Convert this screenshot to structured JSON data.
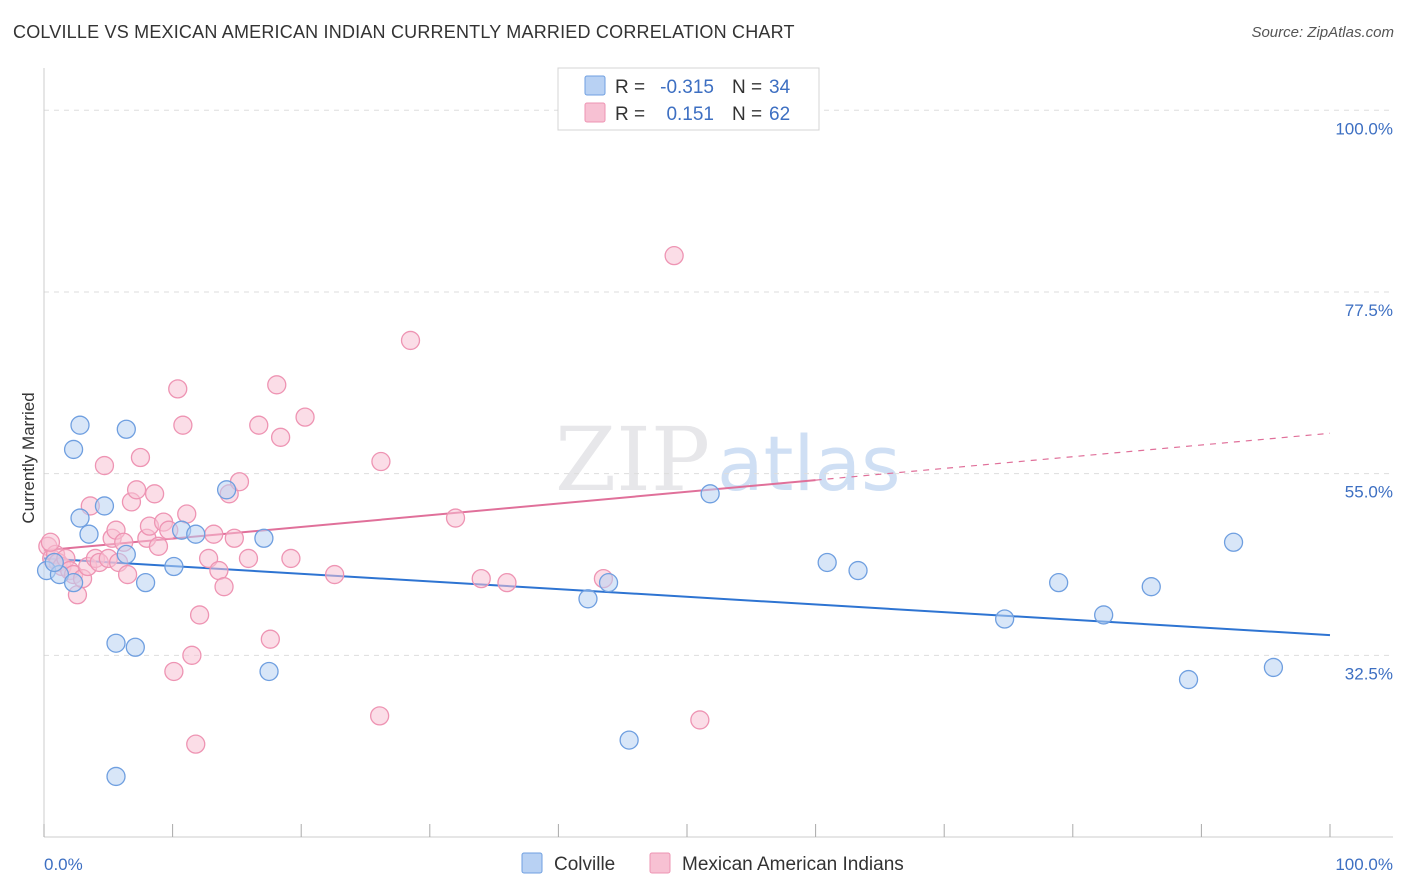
{
  "title": "COLVILLE VS MEXICAN AMERICAN INDIAN CURRENTLY MARRIED CORRELATION CHART",
  "source": "Source: ZipAtlas.com",
  "watermark": {
    "zip": "ZIP",
    "atlas": "atlas"
  },
  "colors": {
    "colville_fill": "#b8d1f3",
    "colville_stroke": "#6f9fe0",
    "colville_line": "#2e74d2",
    "mexican_fill": "#f7c1d3",
    "mexican_stroke": "#ee94b3",
    "mexican_line": "#e0709a",
    "tick_label": "#3d6fc2",
    "grid": "#dddddd"
  },
  "legend_box": {
    "rows": [
      {
        "r_label": "R =",
        "r_value": "-0.315",
        "n_label": "N =",
        "n_value": "34"
      },
      {
        "r_label": "R =",
        "r_value": "0.151",
        "n_label": "N =",
        "n_value": "62"
      }
    ]
  },
  "bottom_legend": [
    "Colville",
    "Mexican American Indians"
  ],
  "chart_data": {
    "type": "scatter",
    "xlabel": "",
    "ylabel": "Currently Married",
    "xlim": [
      0,
      100
    ],
    "ylim": [
      10,
      104
    ],
    "x_tick_labels": [
      "0.0%",
      "100.0%"
    ],
    "y_ticks": [
      {
        "value": 32.5,
        "label": "32.5%"
      },
      {
        "value": 55.0,
        "label": "55.0%"
      },
      {
        "value": 77.5,
        "label": "77.5%"
      },
      {
        "value": 100.0,
        "label": "100.0%"
      }
    ],
    "grid": true,
    "legend_position": "top-center",
    "series": [
      {
        "name": "Colville",
        "r": -0.315,
        "n": 34,
        "trend": {
          "x0": 0,
          "y0": 44.5,
          "x1": 100,
          "y1": 35.0,
          "dashed_from": null
        },
        "points": [
          [
            0.2,
            43.0
          ],
          [
            1.2,
            42.5
          ],
          [
            0.8,
            44.0
          ],
          [
            2.3,
            58.0
          ],
          [
            2.3,
            41.5
          ],
          [
            2.8,
            61.0
          ],
          [
            2.8,
            49.5
          ],
          [
            3.5,
            47.5
          ],
          [
            4.7,
            51.0
          ],
          [
            5.6,
            34.0
          ],
          [
            6.4,
            60.5
          ],
          [
            6.4,
            45.0
          ],
          [
            7.1,
            33.5
          ],
          [
            7.9,
            41.5
          ],
          [
            10.1,
            43.5
          ],
          [
            10.7,
            48.0
          ],
          [
            11.8,
            47.5
          ],
          [
            14.2,
            53.0
          ],
          [
            17.1,
            47.0
          ],
          [
            17.5,
            30.5
          ],
          [
            42.3,
            39.5
          ],
          [
            43.9,
            41.5
          ],
          [
            45.5,
            22.0
          ],
          [
            51.8,
            52.5
          ],
          [
            60.9,
            44.0
          ],
          [
            63.3,
            43.0
          ],
          [
            74.7,
            37.0
          ],
          [
            78.9,
            41.5
          ],
          [
            82.4,
            37.5
          ],
          [
            86.1,
            41.0
          ],
          [
            89.0,
            29.5
          ],
          [
            92.5,
            46.5
          ],
          [
            95.6,
            31.0
          ],
          [
            5.6,
            17.5
          ]
        ]
      },
      {
        "name": "Mexican American Indians",
        "r": 0.151,
        "n": 62,
        "trend": {
          "x0": 0,
          "y0": 45.5,
          "x1": 100,
          "y1": 60.0,
          "dashed_from": 60
        },
        "points": [
          [
            0.3,
            46.0
          ],
          [
            0.6,
            44.5
          ],
          [
            0.9,
            45.0
          ],
          [
            1.1,
            44.0
          ],
          [
            1.4,
            43.5
          ],
          [
            1.7,
            44.5
          ],
          [
            2.0,
            43.0
          ],
          [
            2.3,
            42.5
          ],
          [
            2.6,
            40.0
          ],
          [
            3.0,
            42.0
          ],
          [
            3.4,
            43.5
          ],
          [
            3.6,
            51.0
          ],
          [
            4.0,
            44.5
          ],
          [
            4.3,
            44.0
          ],
          [
            4.7,
            56.0
          ],
          [
            5.0,
            44.5
          ],
          [
            5.3,
            47.0
          ],
          [
            5.6,
            48.0
          ],
          [
            5.8,
            44.0
          ],
          [
            6.2,
            46.5
          ],
          [
            6.5,
            42.5
          ],
          [
            6.8,
            51.5
          ],
          [
            7.2,
            53.0
          ],
          [
            7.5,
            57.0
          ],
          [
            8.0,
            47.0
          ],
          [
            8.2,
            48.5
          ],
          [
            8.6,
            52.5
          ],
          [
            8.9,
            46.0
          ],
          [
            9.3,
            49.0
          ],
          [
            9.7,
            48.0
          ],
          [
            10.1,
            30.5
          ],
          [
            10.4,
            65.5
          ],
          [
            10.8,
            61.0
          ],
          [
            11.1,
            50.0
          ],
          [
            11.5,
            32.5
          ],
          [
            11.8,
            21.5
          ],
          [
            12.1,
            37.5
          ],
          [
            12.8,
            44.5
          ],
          [
            13.2,
            47.5
          ],
          [
            13.6,
            43.0
          ],
          [
            14.0,
            41.0
          ],
          [
            14.4,
            52.5
          ],
          [
            14.8,
            47.0
          ],
          [
            15.2,
            54.0
          ],
          [
            15.9,
            44.5
          ],
          [
            16.7,
            61.0
          ],
          [
            17.6,
            34.5
          ],
          [
            18.1,
            66.0
          ],
          [
            18.4,
            59.5
          ],
          [
            19.2,
            44.5
          ],
          [
            20.3,
            62.0
          ],
          [
            22.6,
            42.5
          ],
          [
            26.1,
            25.0
          ],
          [
            26.2,
            56.5
          ],
          [
            28.5,
            71.5
          ],
          [
            32.0,
            49.5
          ],
          [
            34.0,
            42.0
          ],
          [
            36.0,
            41.5
          ],
          [
            43.5,
            42.0
          ],
          [
            49.0,
            82.0
          ],
          [
            51.0,
            24.5
          ],
          [
            0.5,
            46.5
          ]
        ]
      }
    ]
  }
}
